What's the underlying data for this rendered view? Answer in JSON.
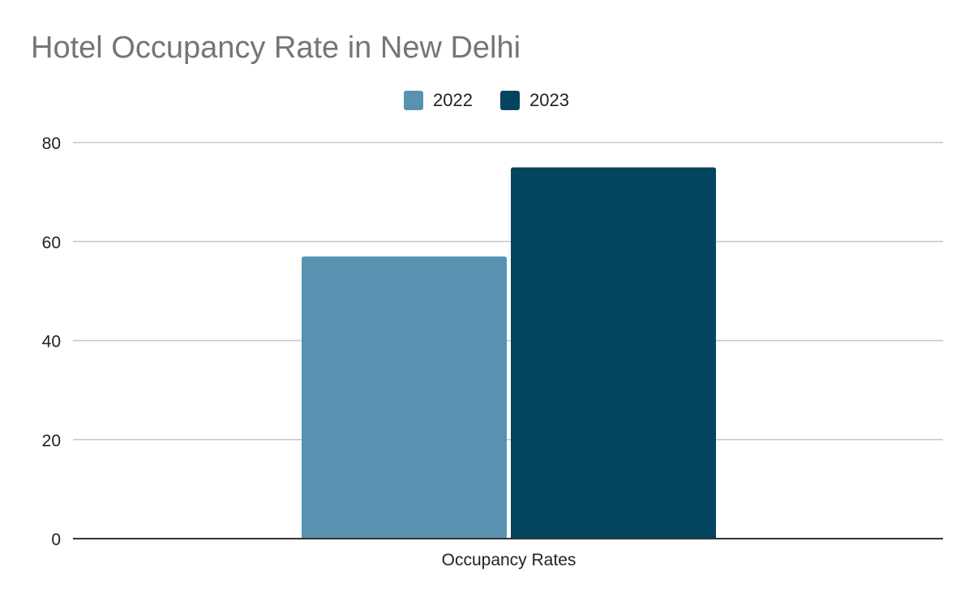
{
  "chart_data": {
    "type": "bar",
    "title": "Hotel Occupancy Rate in New Delhi",
    "categories": [
      "Occupancy Rates"
    ],
    "series": [
      {
        "name": "2022",
        "values": [
          57
        ],
        "color": "#5992b0"
      },
      {
        "name": "2023",
        "values": [
          75
        ],
        "color": "#03445f"
      }
    ],
    "xlabel": "",
    "ylabel": "",
    "ylim": [
      0,
      80
    ],
    "yticks": [
      0,
      20,
      40,
      60,
      80
    ],
    "grid": true,
    "legend_position": "top-center"
  }
}
